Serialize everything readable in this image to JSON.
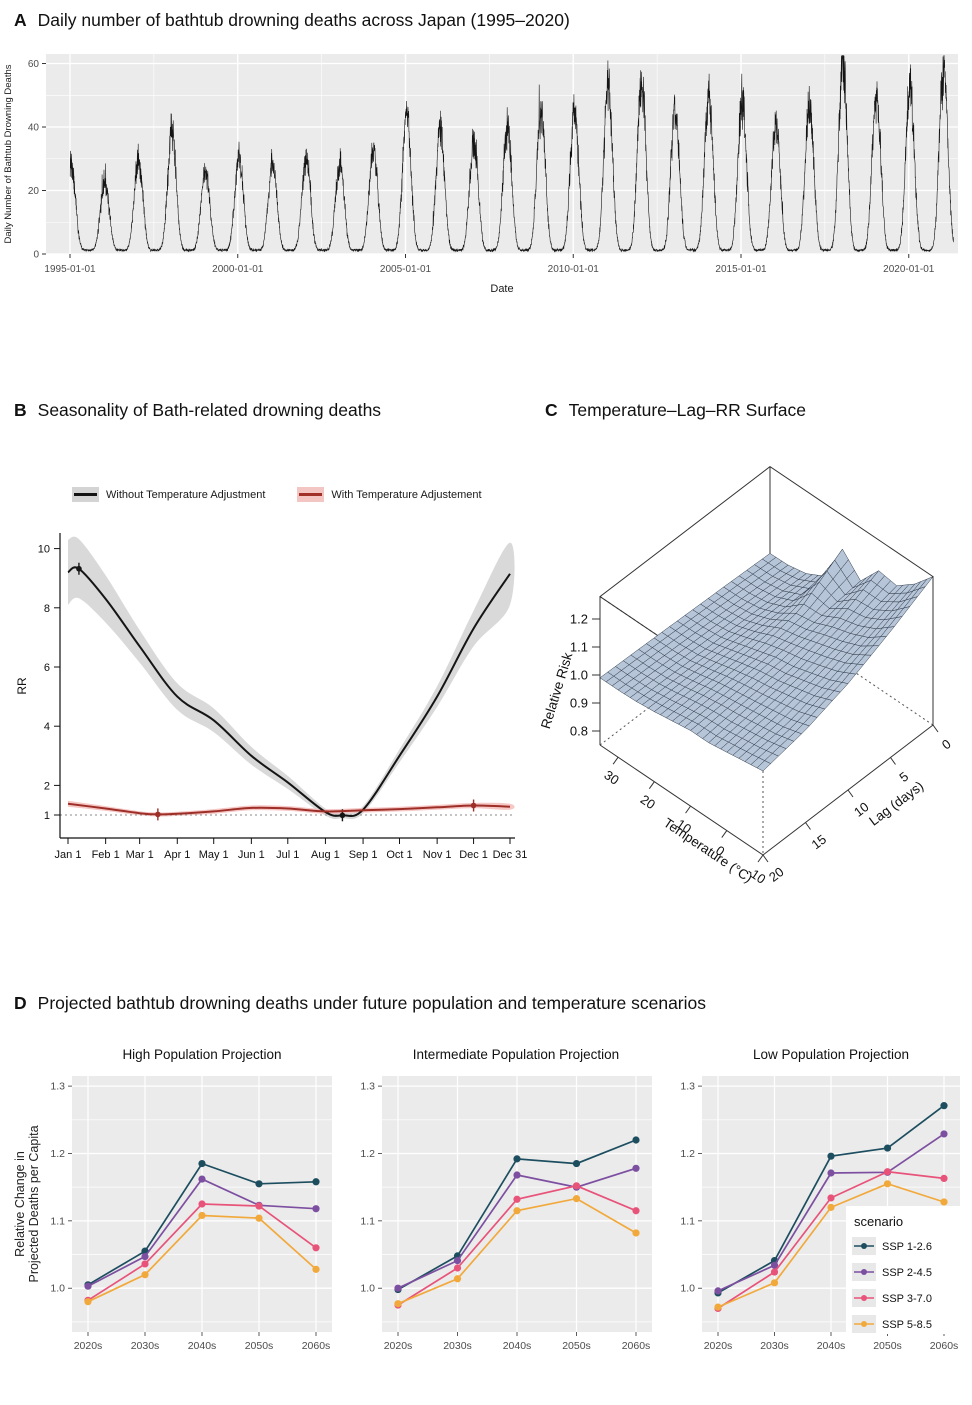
{
  "colors": {
    "panel_bg": "#ebebeb",
    "grid": "#ffffff",
    "tick_label": "#4d4d4d",
    "series_black": "#151515",
    "series_black_band": "#cfcfcf",
    "series_red": "#9e2f28",
    "series_red_band": "#f3b9b6",
    "surface_fill": "#b7c5d8",
    "surface_line": "#2f3b4a"
  },
  "panels": {
    "a": {
      "tag": "A",
      "title": "Daily number of bathtub drowning deaths across Japan (1995–2020)"
    },
    "b": {
      "tag": "B",
      "title": "Seasonality of Bath-related drowning deaths",
      "legend": [
        {
          "label": "Without Temperature Adjustment",
          "line_color": "#141414",
          "band_color": "#d4d4d4"
        },
        {
          "label": "With Temperature Adjustement",
          "line_color": "#a03028",
          "band_color": "#f3c6c3"
        }
      ]
    },
    "c": {
      "tag": "C",
      "title": "Temperature–Lag–RR Surface"
    },
    "d": {
      "tag": "D",
      "title": "Projected bathtub drowning deaths under future population and temperature scenarios"
    }
  },
  "chart_data": [
    {
      "id": "panel-a-daily-series",
      "type": "line",
      "title": "Daily number of bathtub drowning deaths across Japan (1995–2020)",
      "xlabel": "Date",
      "ylabel": "Daily Number of Bathtub Drowning Deaths",
      "x_ticks": [
        "1995-01-01",
        "2000-01-01",
        "2005-01-01",
        "2010-01-01",
        "2015-01-01",
        "2020-01-01"
      ],
      "x_tick_years": [
        1995,
        2000,
        2005,
        2010,
        2015,
        2020
      ],
      "y_ticks": [
        0,
        20,
        40,
        60
      ],
      "ylim": [
        0,
        63
      ],
      "grid": true,
      "seasonal_pattern": "winter peaks, summer troughs",
      "annual_winter_peaks": {
        "years": [
          1995,
          1996,
          1997,
          1998,
          1999,
          2000,
          2001,
          2002,
          2003,
          2004,
          2005,
          2006,
          2007,
          2008,
          2009,
          2010,
          2011,
          2012,
          2013,
          2014,
          2015,
          2016,
          2017,
          2018,
          2019,
          2020
        ],
        "peaks": [
          28,
          22,
          30,
          39,
          26,
          31,
          28,
          30,
          28,
          33,
          45,
          38,
          35,
          40,
          44,
          45,
          52,
          54,
          45,
          50,
          48,
          40,
          46,
          62,
          50,
          52
        ],
        "tail_peak_2021": 58
      },
      "summer_trough_level": 2,
      "line_color": "#151515"
    },
    {
      "id": "panel-b-seasonality",
      "type": "line",
      "title": "Seasonality of Bath-related drowning deaths",
      "ylabel": "RR",
      "y_ticks": [
        1,
        2,
        4,
        6,
        8,
        10
      ],
      "x_ticks": [
        "Jan 1",
        "Feb 1",
        "Mar 1",
        "Apr 1",
        "May 1",
        "Jun 1",
        "Jul 1",
        "Aug 1",
        "Sep 1",
        "Oct 1",
        "Nov 1",
        "Dec 1",
        "Dec 31"
      ],
      "x_tick_days": [
        1,
        32,
        60,
        91,
        121,
        152,
        182,
        213,
        244,
        274,
        305,
        335,
        365
      ],
      "reference_line_rr": 1,
      "series": [
        {
          "name": "Without Temperature Adjustment",
          "color": "#151515",
          "band_color": "#cfcfcf",
          "points_day_rr_halfwidth": [
            [
              1,
              9.2,
              1.1
            ],
            [
              10,
              9.32,
              1.0
            ],
            [
              32,
              8.3,
              0.8
            ],
            [
              60,
              6.7,
              0.55
            ],
            [
              91,
              5.0,
              0.45
            ],
            [
              121,
              4.2,
              0.4
            ],
            [
              152,
              3.0,
              0.3
            ],
            [
              182,
              2.1,
              0.22
            ],
            [
              213,
              1.1,
              0.12
            ],
            [
              227,
              0.99,
              0.1
            ],
            [
              244,
              1.18,
              0.12
            ],
            [
              274,
              3.0,
              0.22
            ],
            [
              305,
              5.0,
              0.35
            ],
            [
              335,
              7.3,
              0.6
            ],
            [
              365,
              9.15,
              1.05
            ]
          ],
          "markers": [
            [
              10,
              9.32
            ],
            [
              227,
              0.99
            ]
          ]
        },
        {
          "name": "With Temperature Adjustement",
          "color": "#9e2f28",
          "band_color": "#f3b9b6",
          "points_day_rr_halfwidth": [
            [
              1,
              1.38,
              0.1
            ],
            [
              32,
              1.22,
              0.08
            ],
            [
              60,
              1.06,
              0.07
            ],
            [
              75,
              1.02,
              0.07
            ],
            [
              91,
              1.04,
              0.07
            ],
            [
              121,
              1.12,
              0.08
            ],
            [
              152,
              1.24,
              0.08
            ],
            [
              182,
              1.22,
              0.08
            ],
            [
              213,
              1.12,
              0.08
            ],
            [
              244,
              1.16,
              0.08
            ],
            [
              274,
              1.2,
              0.08
            ],
            [
              305,
              1.26,
              0.08
            ],
            [
              335,
              1.32,
              0.09
            ],
            [
              365,
              1.28,
              0.1
            ]
          ],
          "markers": [
            [
              75,
              1.02
            ],
            [
              335,
              1.32
            ]
          ]
        }
      ]
    },
    {
      "id": "panel-c-surface",
      "type": "heatmap",
      "render_style": "3d-surface",
      "title": "Temperature–Lag–RR Surface",
      "axes": {
        "x": {
          "label": "Temperature (°C)",
          "ticks": [
            30,
            20,
            10,
            0,
            -10
          ]
        },
        "y": {
          "label": "Lag (days)",
          "ticks": [
            0,
            5,
            10,
            15,
            20
          ]
        },
        "z": {
          "label": "Relative Risk",
          "ticks": [
            0.8,
            0.9,
            1.0,
            1.1,
            1.2
          ]
        }
      },
      "zlim": [
        0.75,
        1.28
      ],
      "temperature_values": [
        35,
        30,
        25,
        20,
        15,
        10,
        5,
        0,
        -5,
        -10
      ],
      "lag_values": [
        0,
        5,
        10,
        15,
        20
      ],
      "rr_grid": [
        [
          0.97,
          0.976,
          0.981,
          0.986,
          0.99
        ],
        [
          0.972,
          0.978,
          0.983,
          0.987,
          0.99
        ],
        [
          0.985,
          0.988,
          0.99,
          0.992,
          0.993
        ],
        [
          1.02,
          1.015,
          1.01,
          1.005,
          1.0
        ],
        [
          1.16,
          1.06,
          1.03,
          1.02,
          1.01
        ],
        [
          1.09,
          1.07,
          1.05,
          1.03,
          1.02
        ],
        [
          1.17,
          1.1,
          1.06,
          1.04,
          1.02
        ],
        [
          1.16,
          1.12,
          1.08,
          1.05,
          1.03
        ],
        [
          1.21,
          1.15,
          1.1,
          1.06,
          1.04
        ],
        [
          1.28,
          1.2,
          1.13,
          1.08,
          1.05
        ]
      ],
      "surface_fill": "#b7c5d8",
      "surface_line": "#2f3b4a"
    },
    {
      "id": "panel-d-high",
      "type": "line",
      "title": "High Population Projection",
      "categories": [
        "2020s",
        "2030s",
        "2040s",
        "2050s",
        "2060s"
      ],
      "y_ticks": [
        1.0,
        1.1,
        1.2,
        1.3
      ],
      "ylim": [
        0.935,
        1.315
      ],
      "series": [
        {
          "name": "SSP 1-2.6",
          "color": "#1d4e60",
          "values": [
            1.005,
            1.055,
            1.185,
            1.155,
            1.158
          ]
        },
        {
          "name": "SSP 2-4.5",
          "color": "#7d4fa0",
          "values": [
            1.003,
            1.047,
            1.162,
            1.123,
            1.118
          ]
        },
        {
          "name": "SSP 3-7.0",
          "color": "#e8537a",
          "values": [
            0.982,
            1.036,
            1.125,
            1.122,
            1.06
          ]
        },
        {
          "name": "SSP 5-8.5",
          "color": "#f2a93c",
          "values": [
            0.98,
            1.02,
            1.108,
            1.104,
            1.028
          ]
        }
      ]
    },
    {
      "id": "panel-d-intermediate",
      "type": "line",
      "title": "Intermediate Population Projection",
      "categories": [
        "2020s",
        "2030s",
        "2040s",
        "2050s",
        "2060s"
      ],
      "y_ticks": [
        1.0,
        1.1,
        1.2,
        1.3
      ],
      "ylim": [
        0.935,
        1.315
      ],
      "series": [
        {
          "name": "SSP 1-2.6",
          "color": "#1d4e60",
          "values": [
            0.998,
            1.048,
            1.192,
            1.185,
            1.22
          ]
        },
        {
          "name": "SSP 2-4.5",
          "color": "#7d4fa0",
          "values": [
            1.0,
            1.041,
            1.168,
            1.15,
            1.178
          ]
        },
        {
          "name": "SSP 3-7.0",
          "color": "#e8537a",
          "values": [
            0.975,
            1.03,
            1.132,
            1.152,
            1.115
          ]
        },
        {
          "name": "SSP 5-8.5",
          "color": "#f2a93c",
          "values": [
            0.977,
            1.014,
            1.115,
            1.133,
            1.082
          ]
        }
      ]
    },
    {
      "id": "panel-d-low",
      "type": "line",
      "title": "Low Population Projection",
      "categories": [
        "2020s",
        "2030s",
        "2040s",
        "2050s",
        "2060s"
      ],
      "y_ticks": [
        1.0,
        1.1,
        1.2,
        1.3
      ],
      "ylim": [
        0.935,
        1.315
      ],
      "ylabel": "Relative Change in Projected Deaths per Capita",
      "legend_title": "scenario",
      "series": [
        {
          "name": "SSP 1-2.6",
          "color": "#1d4e60",
          "values": [
            0.993,
            1.041,
            1.196,
            1.208,
            1.271
          ]
        },
        {
          "name": "SSP 2-4.5",
          "color": "#7d4fa0",
          "values": [
            0.996,
            1.034,
            1.171,
            1.172,
            1.229
          ]
        },
        {
          "name": "SSP 3-7.0",
          "color": "#e8537a",
          "values": [
            0.97,
            1.024,
            1.134,
            1.173,
            1.163
          ]
        },
        {
          "name": "SSP 5-8.5",
          "color": "#f2a93c",
          "values": [
            0.972,
            1.008,
            1.12,
            1.155,
            1.128
          ]
        }
      ]
    }
  ]
}
